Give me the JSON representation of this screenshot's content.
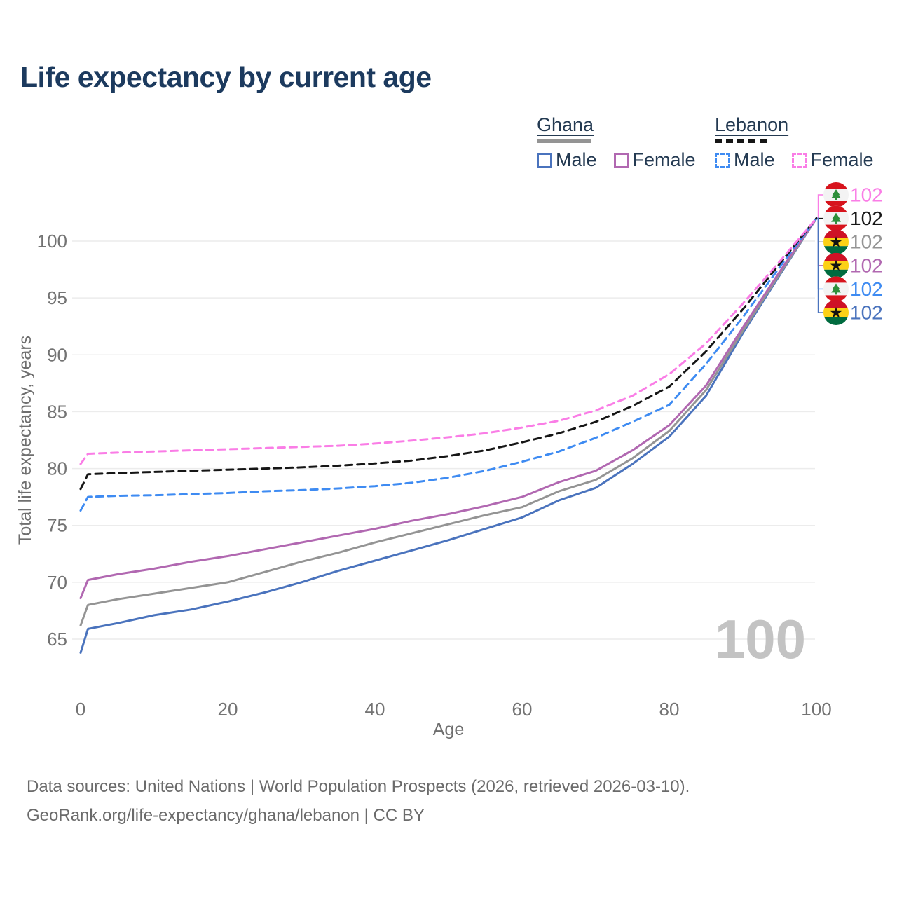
{
  "title": "Life expectancy by current age",
  "legend": {
    "ghana": {
      "title": "Ghana",
      "male": "Male",
      "female": "Female"
    },
    "lebanon": {
      "title": "Lebanon",
      "male": "Male",
      "female": "Female"
    }
  },
  "footer": {
    "line1": "Data sources: United Nations | World Population Prospects (2026, retrieved 2026-03-10).",
    "line2": "GeoRank.org/life-expectancy/ghana/lebanon | CC BY"
  },
  "colors": {
    "title_text": "#1c3a5e",
    "legend_text": "#243a52",
    "tick_text": "#737373",
    "grid_line": "#ececec",
    "watermark_text": "#c3c3c3",
    "footer_text": "#6b6b6b",
    "ghana_flag": {
      "red": "#ce1126",
      "gold": "#fcd116",
      "green": "#006b3f",
      "star": "#111111"
    },
    "lebanon_flag": {
      "red": "#d7141d",
      "white": "#f3f3f3",
      "cedar": "#2e8f3a"
    }
  },
  "chart_data": {
    "type": "line",
    "title": "Life expectancy by current age",
    "xlabel": "Age",
    "ylabel": "Total life expectancy, years",
    "watermark": "100",
    "x_ticks": [
      0,
      20,
      40,
      60,
      80,
      100
    ],
    "y_ticks": [
      65,
      70,
      75,
      80,
      85,
      90,
      95,
      100
    ],
    "xlim": [
      0,
      100
    ],
    "ylim": [
      63,
      103
    ],
    "grid": "horizontal",
    "legend_position": "top-right",
    "ages": [
      0,
      1,
      5,
      10,
      15,
      20,
      25,
      30,
      35,
      40,
      45,
      50,
      55,
      60,
      65,
      70,
      75,
      80,
      85,
      90,
      95,
      100
    ],
    "series": [
      {
        "name": "ghana_male",
        "country": "Ghana",
        "sex": "Male",
        "color": "#4a73bd",
        "dash": false,
        "values": [
          63.8,
          65.9,
          66.4,
          67.1,
          67.6,
          68.3,
          69.1,
          70.0,
          71.0,
          71.9,
          72.8,
          73.7,
          74.7,
          75.7,
          77.2,
          78.3,
          80.4,
          82.8,
          86.4,
          91.9,
          97.0,
          102
        ]
      },
      {
        "name": "ghana_all",
        "country": "Ghana",
        "sex": "All",
        "color": "#949494",
        "dash": false,
        "values": [
          66.2,
          68.0,
          68.5,
          69.0,
          69.5,
          70.0,
          70.9,
          71.8,
          72.6,
          73.5,
          74.3,
          75.1,
          75.9,
          76.6,
          78.0,
          79.0,
          80.9,
          83.3,
          86.9,
          92.1,
          97.1,
          102
        ]
      },
      {
        "name": "ghana_female",
        "country": "Ghana",
        "sex": "Female",
        "color": "#b168b1",
        "dash": false,
        "values": [
          68.6,
          70.2,
          70.7,
          71.2,
          71.8,
          72.3,
          72.9,
          73.5,
          74.1,
          74.7,
          75.4,
          76.0,
          76.7,
          77.5,
          78.8,
          79.8,
          81.6,
          83.8,
          87.3,
          92.4,
          97.3,
          102
        ]
      },
      {
        "name": "lebanon_male",
        "country": "Lebanon",
        "sex": "Male",
        "color": "#3e8bf2",
        "dash": true,
        "values": [
          76.3,
          77.5,
          77.6,
          77.65,
          77.75,
          77.85,
          78.0,
          78.1,
          78.25,
          78.45,
          78.75,
          79.2,
          79.8,
          80.6,
          81.5,
          82.7,
          84.1,
          85.6,
          89.2,
          93.3,
          97.7,
          102
        ]
      },
      {
        "name": "lebanon_all",
        "country": "Lebanon",
        "sex": "All",
        "color": "#161616",
        "dash": true,
        "values": [
          78.2,
          79.5,
          79.6,
          79.7,
          79.8,
          79.9,
          80.0,
          80.1,
          80.25,
          80.45,
          80.7,
          81.1,
          81.6,
          82.3,
          83.1,
          84.1,
          85.5,
          87.2,
          90.3,
          94.0,
          98.0,
          102
        ]
      },
      {
        "name": "lebanon_female",
        "country": "Lebanon",
        "sex": "Female",
        "color": "#fa7de6",
        "dash": true,
        "values": [
          80.4,
          81.3,
          81.4,
          81.5,
          81.6,
          81.7,
          81.8,
          81.9,
          82.0,
          82.2,
          82.45,
          82.75,
          83.1,
          83.6,
          84.2,
          85.1,
          86.4,
          88.3,
          91.0,
          94.5,
          98.2,
          102
        ]
      }
    ],
    "end_labels": [
      {
        "series": "lebanon_female",
        "flag": "lebanon",
        "label": "102"
      },
      {
        "series": "lebanon_all",
        "flag": "lebanon",
        "label": "102"
      },
      {
        "series": "ghana_all",
        "flag": "ghana",
        "label": "102"
      },
      {
        "series": "ghana_female",
        "flag": "ghana",
        "label": "102"
      },
      {
        "series": "lebanon_male",
        "flag": "lebanon",
        "label": "102"
      },
      {
        "series": "ghana_male",
        "flag": "ghana",
        "label": "102"
      }
    ]
  }
}
